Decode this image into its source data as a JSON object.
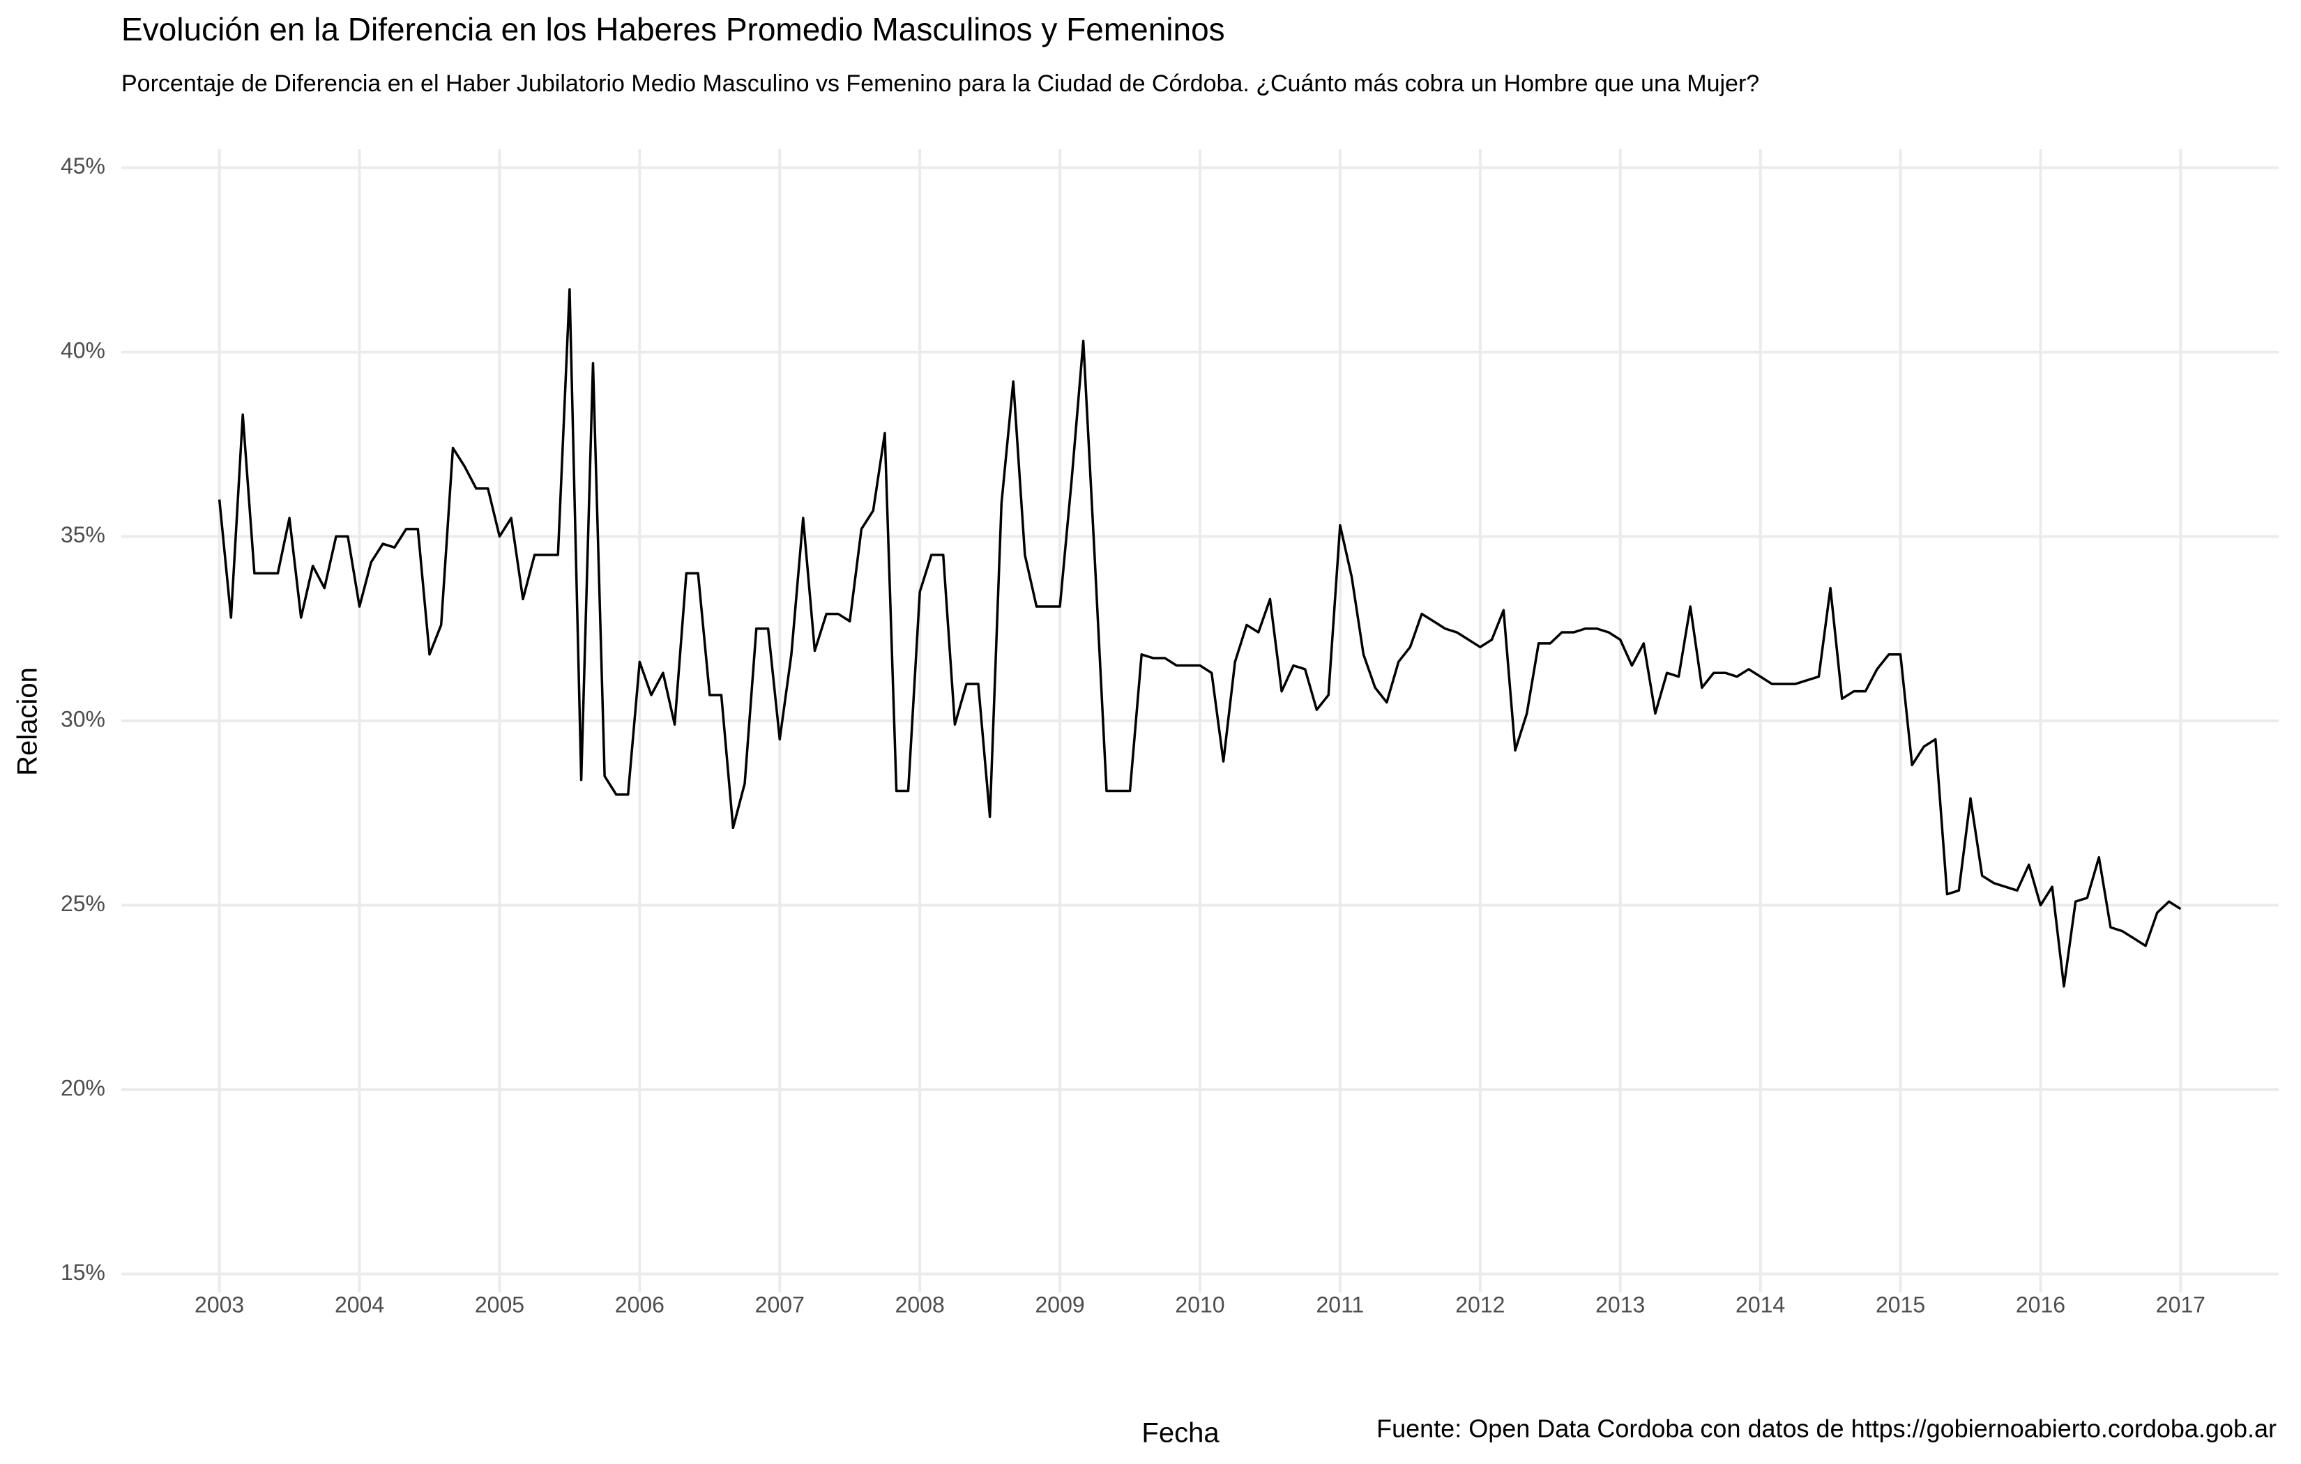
{
  "chart_data": {
    "type": "line",
    "title": "Evolución en la Diferencia en los Haberes Promedio Masculinos y Femeninos",
    "subtitle": "Porcentaje de Diferencia en el Haber Jubilatorio Medio Masculino vs Femenino para la Ciudad de Córdoba. ¿Cuánto más cobra un Hombre que una Mujer?",
    "x_label": "Fecha",
    "y_label": "Relacion",
    "caption": "Fuente: Open Data Cordoba con datos de https://gobiernoabierto.cordoba.gob.ar",
    "color": "#000000",
    "grid": true,
    "x": [
      2003,
      2003.083,
      2003.167,
      2003.25,
      2003.333,
      2003.417,
      2003.5,
      2003.583,
      2003.667,
      2003.75,
      2003.833,
      2003.917,
      2004,
      2004.083,
      2004.167,
      2004.25,
      2004.333,
      2004.417,
      2004.5,
      2004.583,
      2004.667,
      2004.75,
      2004.833,
      2004.917,
      2005,
      2005.083,
      2005.167,
      2005.25,
      2005.333,
      2005.417,
      2005.5,
      2005.583,
      2005.667,
      2005.75,
      2005.833,
      2005.917,
      2006,
      2006.083,
      2006.167,
      2006.25,
      2006.333,
      2006.417,
      2006.5,
      2006.583,
      2006.667,
      2006.75,
      2006.833,
      2006.917,
      2007,
      2007.083,
      2007.167,
      2007.25,
      2007.333,
      2007.417,
      2007.5,
      2007.583,
      2007.667,
      2007.75,
      2007.833,
      2007.917,
      2008,
      2008.083,
      2008.167,
      2008.25,
      2008.333,
      2008.417,
      2008.5,
      2008.583,
      2008.667,
      2008.75,
      2008.833,
      2008.917,
      2009,
      2009.083,
      2009.167,
      2009.25,
      2009.333,
      2009.417,
      2009.5,
      2009.583,
      2009.667,
      2009.75,
      2009.833,
      2009.917,
      2010,
      2010.083,
      2010.167,
      2010.25,
      2010.333,
      2010.417,
      2010.5,
      2010.583,
      2010.667,
      2010.75,
      2010.833,
      2010.917,
      2011,
      2011.083,
      2011.167,
      2011.25,
      2011.333,
      2011.417,
      2011.5,
      2011.583,
      2011.667,
      2011.75,
      2011.833,
      2011.917,
      2012,
      2012.083,
      2012.167,
      2012.25,
      2012.333,
      2012.417,
      2012.5,
      2012.583,
      2012.667,
      2012.75,
      2012.833,
      2012.917,
      2013,
      2013.083,
      2013.167,
      2013.25,
      2013.333,
      2013.417,
      2013.5,
      2013.583,
      2013.667,
      2013.75,
      2013.833,
      2013.917,
      2014,
      2014.083,
      2014.167,
      2014.25,
      2014.333,
      2014.417,
      2014.5,
      2014.583,
      2014.667,
      2014.75,
      2014.833,
      2014.917,
      2015,
      2015.083,
      2015.167,
      2015.25,
      2015.333,
      2015.417,
      2015.5,
      2015.583,
      2015.667,
      2015.75,
      2015.833,
      2015.917,
      2016,
      2016.083,
      2016.167,
      2016.25,
      2016.333,
      2016.417,
      2016.5,
      2016.583,
      2016.667,
      2016.75,
      2016.833,
      2016.917,
      2017
    ],
    "values": [
      36.0,
      32.8,
      38.3,
      34.0,
      34.0,
      34.0,
      35.5,
      32.8,
      34.2,
      33.6,
      35.0,
      35.0,
      33.1,
      34.3,
      34.8,
      34.7,
      35.2,
      35.2,
      31.8,
      32.6,
      37.4,
      36.9,
      36.3,
      36.3,
      35.0,
      35.5,
      33.3,
      34.5,
      34.5,
      34.5,
      41.7,
      28.4,
      39.7,
      28.5,
      28.0,
      28.0,
      31.6,
      30.7,
      31.3,
      29.9,
      34.0,
      34.0,
      30.7,
      30.7,
      27.1,
      28.3,
      32.5,
      32.5,
      29.5,
      31.8,
      35.5,
      31.9,
      32.9,
      32.9,
      32.7,
      35.2,
      35.7,
      37.8,
      28.1,
      28.1,
      33.5,
      34.5,
      34.5,
      29.9,
      31.0,
      31.0,
      27.4,
      35.9,
      39.2,
      34.5,
      33.1,
      33.1,
      33.1,
      36.5,
      40.3,
      34.3,
      28.1,
      28.1,
      28.1,
      31.8,
      31.7,
      31.7,
      31.5,
      31.5,
      31.5,
      31.3,
      28.9,
      31.6,
      32.6,
      32.4,
      33.3,
      30.8,
      31.5,
      31.4,
      30.3,
      30.7,
      35.3,
      33.9,
      31.8,
      30.9,
      30.5,
      31.6,
      32.0,
      32.9,
      32.7,
      32.5,
      32.4,
      32.2,
      32.0,
      32.2,
      33.0,
      29.2,
      30.2,
      32.1,
      32.1,
      32.4,
      32.4,
      32.5,
      32.5,
      32.4,
      32.2,
      31.5,
      32.1,
      30.2,
      31.3,
      31.2,
      33.1,
      30.9,
      31.3,
      31.3,
      31.2,
      31.4,
      31.2,
      31.0,
      31.0,
      31.0,
      31.1,
      31.2,
      33.6,
      30.6,
      30.8,
      30.8,
      31.4,
      31.8,
      31.8,
      28.8,
      29.3,
      29.5,
      25.3,
      25.4,
      27.9,
      25.8,
      25.6,
      25.5,
      25.4,
      26.1,
      25.0,
      25.5,
      22.8,
      25.1,
      25.2,
      26.3,
      24.4,
      24.3,
      24.1,
      23.9,
      24.8,
      25.1,
      24.9
    ],
    "xlim": [
      2002.3,
      2017.7
    ],
    "xticks": [
      2003,
      2004,
      2005,
      2006,
      2007,
      2008,
      2009,
      2010,
      2011,
      2012,
      2013,
      2014,
      2015,
      2016,
      2017
    ],
    "ylim": [
      14.5,
      45.5
    ],
    "yticks": [
      {
        "value": 15,
        "label": "15%"
      },
      {
        "value": 20,
        "label": "20%"
      },
      {
        "value": 25,
        "label": "25%"
      },
      {
        "value": 30,
        "label": "30%"
      },
      {
        "value": 35,
        "label": "35%"
      },
      {
        "value": 40,
        "label": "40%"
      },
      {
        "value": 45,
        "label": "45%"
      }
    ]
  }
}
